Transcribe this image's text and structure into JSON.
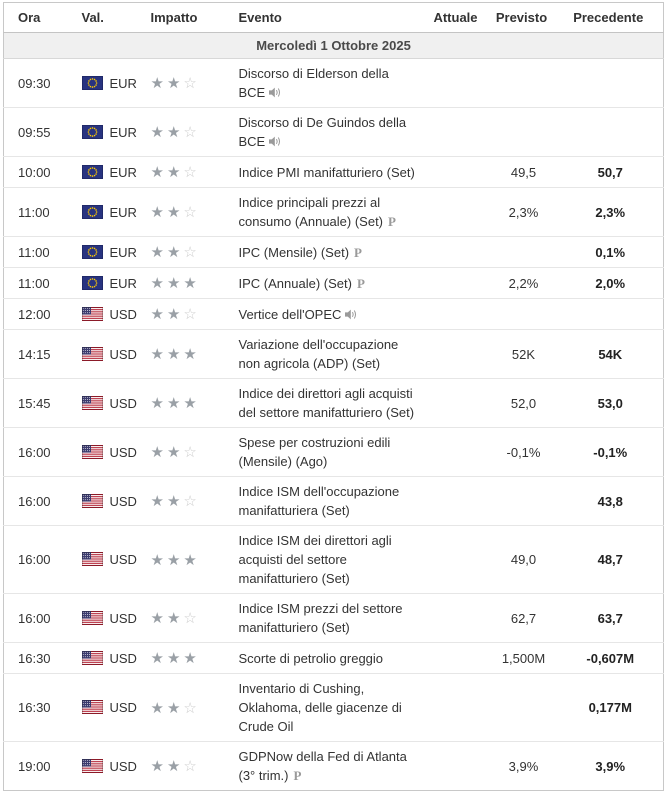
{
  "table": {
    "columns": [
      "Ora",
      "Val.",
      "Impatto",
      "Evento",
      "Attuale",
      "Previsto",
      "Precedente"
    ],
    "date_header": "Mercoledì 1 Ottobre 2025",
    "impact_scale": 3,
    "colors": {
      "text": "#333333",
      "date_row_bg": "#f0f0f0",
      "outer_border": "#c8c8c8",
      "row_divider": "#e6e6e6",
      "star_filled": "#9aa0a6",
      "star_empty": "#cccccc",
      "previous_value_bold": "#222222",
      "icon_gray": "#9a9a9a",
      "flag_eu_blue": "#283380",
      "flag_eu_stars": "#ffcc00",
      "flag_us_red": "#b22234",
      "flag_us_blue": "#3c3b6e"
    },
    "icons": {
      "speaker": "speaker-icon",
      "preliminary": "preliminary-icon",
      "star_filled": "impact-star-filled-icon",
      "star_empty": "impact-star-empty-icon"
    },
    "rows": [
      {
        "time": "09:30",
        "currency": "EUR",
        "flag": "eu",
        "impact": 2,
        "event": "Discorso di Elderson della BCE",
        "speaker_icon": true,
        "prelim_icon": false,
        "actual": "",
        "forecast": "",
        "previous": ""
      },
      {
        "time": "09:55",
        "currency": "EUR",
        "flag": "eu",
        "impact": 2,
        "event": "Discorso di De Guindos della BCE",
        "speaker_icon": true,
        "prelim_icon": false,
        "actual": "",
        "forecast": "",
        "previous": ""
      },
      {
        "time": "10:00",
        "currency": "EUR",
        "flag": "eu",
        "impact": 2,
        "event": "Indice PMI manifatturiero (Set)",
        "speaker_icon": false,
        "prelim_icon": false,
        "actual": "",
        "forecast": "49,5",
        "previous": "50,7"
      },
      {
        "time": "11:00",
        "currency": "EUR",
        "flag": "eu",
        "impact": 2,
        "event": "Indice principali prezzi al consumo (Annuale) (Set)",
        "speaker_icon": false,
        "prelim_icon": true,
        "actual": "",
        "forecast": "2,3%",
        "previous": "2,3%"
      },
      {
        "time": "11:00",
        "currency": "EUR",
        "flag": "eu",
        "impact": 2,
        "event": "IPC (Mensile) (Set)",
        "speaker_icon": false,
        "prelim_icon": true,
        "actual": "",
        "forecast": "",
        "previous": "0,1%"
      },
      {
        "time": "11:00",
        "currency": "EUR",
        "flag": "eu",
        "impact": 3,
        "event": "IPC (Annuale) (Set)",
        "speaker_icon": false,
        "prelim_icon": true,
        "actual": "",
        "forecast": "2,2%",
        "previous": "2,0%"
      },
      {
        "time": "12:00",
        "currency": "USD",
        "flag": "us",
        "impact": 2,
        "event": "Vertice dell'OPEC",
        "speaker_icon": true,
        "prelim_icon": false,
        "actual": "",
        "forecast": "",
        "previous": ""
      },
      {
        "time": "14:15",
        "currency": "USD",
        "flag": "us",
        "impact": 3,
        "event": "Variazione dell'occupazione non agricola (ADP) (Set)",
        "speaker_icon": false,
        "prelim_icon": false,
        "actual": "",
        "forecast": "52K",
        "previous": "54K"
      },
      {
        "time": "15:45",
        "currency": "USD",
        "flag": "us",
        "impact": 3,
        "event": "Indice dei direttori agli acquisti del settore manifatturiero (Set)",
        "speaker_icon": false,
        "prelim_icon": false,
        "actual": "",
        "forecast": "52,0",
        "previous": "53,0"
      },
      {
        "time": "16:00",
        "currency": "USD",
        "flag": "us",
        "impact": 2,
        "event": "Spese per costruzioni edili (Mensile) (Ago)",
        "speaker_icon": false,
        "prelim_icon": false,
        "actual": "",
        "forecast": "-0,1%",
        "previous": "-0,1%"
      },
      {
        "time": "16:00",
        "currency": "USD",
        "flag": "us",
        "impact": 2,
        "event": "Indice ISM dell'occupazione manifatturiera (Set)",
        "speaker_icon": false,
        "prelim_icon": false,
        "actual": "",
        "forecast": "",
        "previous": "43,8"
      },
      {
        "time": "16:00",
        "currency": "USD",
        "flag": "us",
        "impact": 3,
        "event": "Indice ISM dei direttori agli acquisti del settore manifatturiero (Set)",
        "speaker_icon": false,
        "prelim_icon": false,
        "actual": "",
        "forecast": "49,0",
        "previous": "48,7"
      },
      {
        "time": "16:00",
        "currency": "USD",
        "flag": "us",
        "impact": 2,
        "event": "Indice ISM prezzi del settore manifatturiero (Set)",
        "speaker_icon": false,
        "prelim_icon": false,
        "actual": "",
        "forecast": "62,7",
        "previous": "63,7"
      },
      {
        "time": "16:30",
        "currency": "USD",
        "flag": "us",
        "impact": 3,
        "event": "Scorte di petrolio greggio",
        "speaker_icon": false,
        "prelim_icon": false,
        "actual": "",
        "forecast": "1,500M",
        "previous": "-0,607M"
      },
      {
        "time": "16:30",
        "currency": "USD",
        "flag": "us",
        "impact": 2,
        "event": "Inventario di Cushing, Oklahoma, delle giacenze di Crude Oil",
        "speaker_icon": false,
        "prelim_icon": false,
        "actual": "",
        "forecast": "",
        "previous": "0,177M"
      },
      {
        "time": "19:00",
        "currency": "USD",
        "flag": "us",
        "impact": 2,
        "event": "GDPNow della Fed di Atlanta (3° trim.)",
        "speaker_icon": false,
        "prelim_icon": true,
        "actual": "",
        "forecast": "3,9%",
        "previous": "3,9%"
      }
    ]
  }
}
